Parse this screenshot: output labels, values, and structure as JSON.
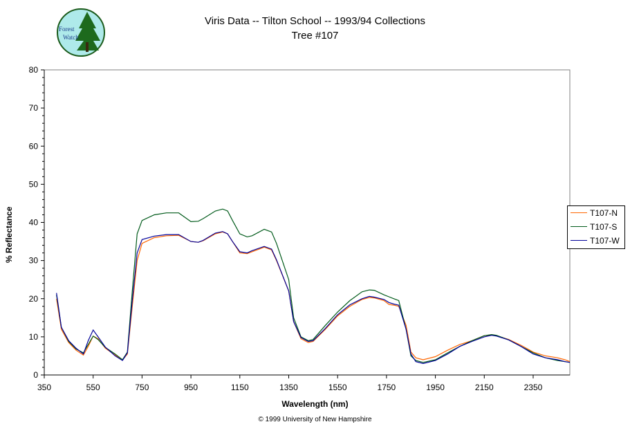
{
  "header": {
    "title_line1": "Viris Data -- Tilton School -- 1993/94 Collections",
    "title_line2": "Tree #107",
    "logo_text_1": "Forest",
    "logo_text_2": "Watch"
  },
  "footer": {
    "copyright": "© 1999 University of New Hampshire"
  },
  "colors": {
    "T107-N": "#ff6600",
    "T107-S": "#005a1a",
    "T107-W": "#000099"
  },
  "chart_data": {
    "type": "line",
    "title": "Viris Data -- Tilton School -- 1993/94 Collections",
    "subtitle": "Tree #107",
    "xlabel": "Wavelength (nm)",
    "ylabel": "% Reflectance",
    "xlim": [
      350,
      2500
    ],
    "ylim": [
      0,
      80
    ],
    "xticks": [
      350,
      550,
      750,
      950,
      1150,
      1350,
      1550,
      1750,
      1950,
      2150,
      2350
    ],
    "yticks": [
      0,
      10,
      20,
      30,
      40,
      50,
      60,
      70,
      80
    ],
    "grid": false,
    "legend_position": "right",
    "series": [
      {
        "name": "T107-N",
        "x": [
          400,
          420,
          450,
          480,
          510,
          530,
          550,
          570,
          600,
          640,
          670,
          690,
          710,
          730,
          750,
          800,
          850,
          900,
          950,
          980,
          1000,
          1050,
          1080,
          1100,
          1120,
          1150,
          1180,
          1200,
          1250,
          1280,
          1300,
          1350,
          1370,
          1400,
          1430,
          1450,
          1500,
          1550,
          1600,
          1650,
          1680,
          1700,
          1740,
          1760,
          1780,
          1800,
          1830,
          1850,
          1870,
          1900,
          1950,
          2000,
          2050,
          2100,
          2150,
          2180,
          2200,
          2250,
          2300,
          2350,
          2400,
          2450,
          2480,
          2500
        ],
        "y": [
          20,
          12,
          8.5,
          6.5,
          5.2,
          7.5,
          10.2,
          9.5,
          7,
          5.2,
          3.9,
          5.5,
          18,
          30,
          34.5,
          36,
          36.5,
          36.6,
          35,
          34.8,
          35.2,
          37,
          37.5,
          37,
          35,
          32,
          31.8,
          32.3,
          33.5,
          32.8,
          30,
          22,
          14,
          9.5,
          8.5,
          8.8,
          12,
          15.5,
          18,
          19.8,
          20.3,
          20.2,
          19.5,
          18.5,
          18.3,
          18,
          13,
          6,
          4.5,
          4,
          4.8,
          6.5,
          8,
          9,
          10.3,
          10.5,
          10.3,
          9.3,
          7.8,
          6,
          5,
          4.5,
          4,
          3.5
        ]
      },
      {
        "name": "T107-S",
        "x": [
          400,
          420,
          450,
          480,
          510,
          530,
          550,
          570,
          600,
          640,
          670,
          690,
          710,
          730,
          750,
          800,
          850,
          900,
          950,
          980,
          1000,
          1050,
          1080,
          1100,
          1120,
          1150,
          1180,
          1200,
          1250,
          1280,
          1300,
          1350,
          1370,
          1400,
          1430,
          1450,
          1500,
          1550,
          1600,
          1650,
          1680,
          1700,
          1740,
          1760,
          1780,
          1800,
          1830,
          1850,
          1870,
          1900,
          1950,
          2000,
          2050,
          2100,
          2150,
          2180,
          2200,
          2250,
          2300,
          2350,
          2400,
          2450,
          2480,
          2500
        ],
        "y": [
          21,
          12.5,
          8.8,
          6.8,
          5.8,
          8,
          10.2,
          9.3,
          7.2,
          5.5,
          4,
          6,
          22,
          37,
          40.5,
          42,
          42.5,
          42.5,
          40.2,
          40.3,
          41,
          43,
          43.5,
          43,
          40.5,
          37,
          36.2,
          36.5,
          38.2,
          37.5,
          34.5,
          25,
          15,
          10,
          9,
          9.3,
          13,
          16.5,
          19.5,
          21.8,
          22.3,
          22.2,
          21,
          20.5,
          20,
          19.5,
          12,
          5,
          3.8,
          3.3,
          4,
          5.8,
          7.5,
          9,
          10.3,
          10.6,
          10.4,
          9.2,
          7.5,
          5.8,
          4.5,
          3.8,
          3.5,
          3.3
        ]
      },
      {
        "name": "T107-W",
        "x": [
          400,
          420,
          450,
          480,
          510,
          530,
          550,
          570,
          600,
          640,
          670,
          690,
          710,
          730,
          750,
          800,
          850,
          900,
          950,
          980,
          1000,
          1050,
          1080,
          1100,
          1120,
          1150,
          1180,
          1200,
          1250,
          1280,
          1300,
          1350,
          1370,
          1400,
          1430,
          1450,
          1500,
          1550,
          1600,
          1650,
          1680,
          1700,
          1740,
          1760,
          1780,
          1800,
          1830,
          1850,
          1870,
          1900,
          1950,
          2000,
          2050,
          2100,
          2150,
          2180,
          2200,
          2250,
          2300,
          2350,
          2400,
          2450,
          2480,
          2500
        ],
        "y": [
          21.5,
          12.5,
          9,
          7,
          5.5,
          9,
          11.8,
          10,
          7.3,
          5,
          3.8,
          5.8,
          19.5,
          32,
          35.5,
          36.4,
          36.8,
          36.8,
          35,
          34.8,
          35.3,
          37.2,
          37.6,
          37,
          35,
          32.3,
          32,
          32.6,
          33.7,
          33,
          30.2,
          22,
          14,
          9.8,
          8.8,
          9,
          12.2,
          15.8,
          18.4,
          20,
          20.6,
          20.4,
          19.8,
          19,
          18.6,
          18.3,
          12,
          5.5,
          3.5,
          3,
          3.8,
          5.5,
          7.5,
          8.8,
          10,
          10.4,
          10.2,
          9.2,
          7.5,
          5.5,
          4.5,
          4,
          3.5,
          3.3
        ]
      }
    ]
  }
}
